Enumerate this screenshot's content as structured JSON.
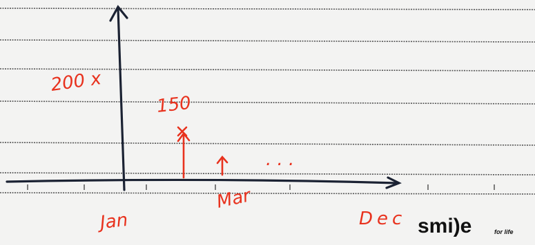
{
  "annotations": {
    "y_label": "200 x",
    "value_label": "150",
    "month_mid": "Mar",
    "month_start": "Jan",
    "month_end": "Dec",
    "ellipsis": ". . ."
  },
  "logo": {
    "brand": "smi)e",
    "tagline": "for life"
  }
}
